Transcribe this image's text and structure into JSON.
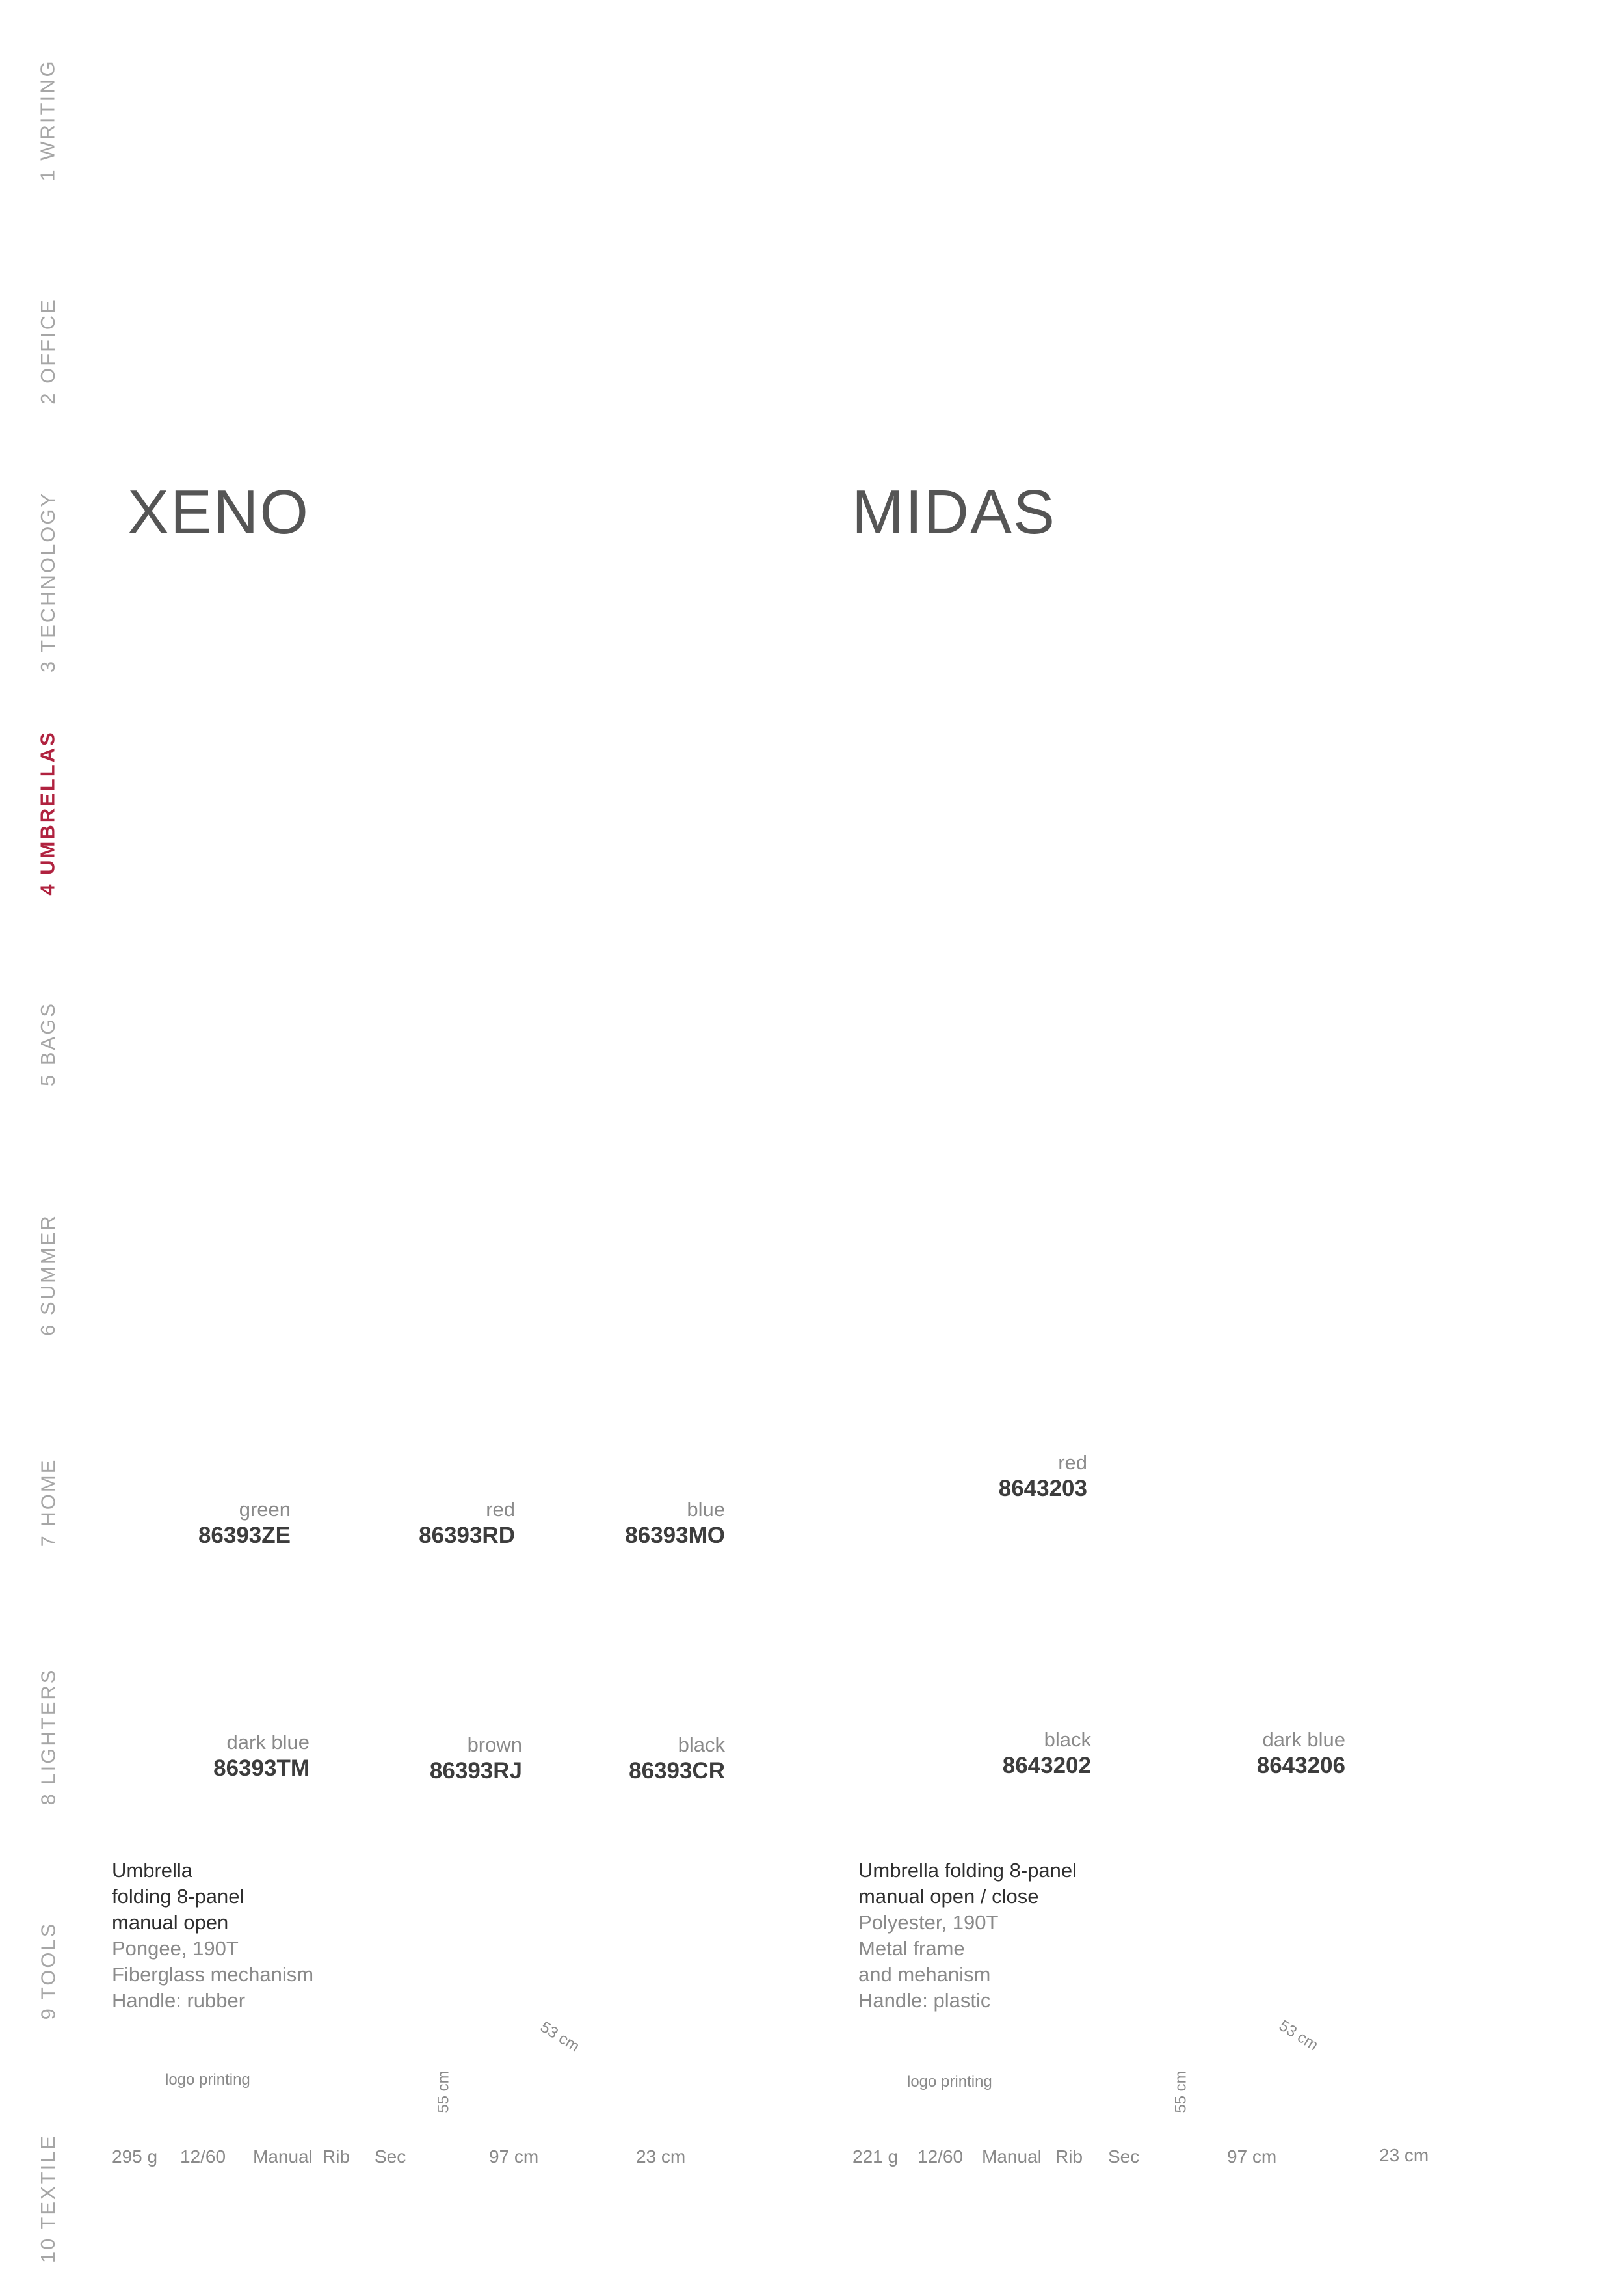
{
  "nav": {
    "tabs": [
      {
        "label": "1 WRITING"
      },
      {
        "label": "2 OFFICE"
      },
      {
        "label": "3 TECHNOLOGY"
      },
      {
        "label": "4 UMBRELLAS"
      },
      {
        "label": "5 BAGS"
      },
      {
        "label": "6 SUMMER"
      },
      {
        "label": "7 HOME"
      },
      {
        "label": "8 LIGHTERS"
      },
      {
        "label": "9 TOOLS"
      },
      {
        "label": "10 TEXTILE"
      }
    ],
    "active_index": 3,
    "active_color": "#b0223f"
  },
  "xeno": {
    "title": "XENO",
    "variants": [
      {
        "color": "green",
        "code": "86393ZE"
      },
      {
        "color": "red",
        "code": "86393RD"
      },
      {
        "color": "blue",
        "code": "86393MO"
      },
      {
        "color": "dark blue",
        "code": "86393TM"
      },
      {
        "color": "brown",
        "code": "86393RJ"
      },
      {
        "color": "black",
        "code": "86393CR"
      }
    ],
    "description": {
      "line1": "Umbrella",
      "line2": "folding 8-panel",
      "line3": "manual open",
      "line4": "Pongee, 190T",
      "line5": "Fiberglass mechanism",
      "line6": "Handle: rubber"
    },
    "logo_label": "logo printing",
    "height_label": "55 cm",
    "diameter_label": "53 cm",
    "specs": {
      "weight": "295 g",
      "pack": "12/60",
      "opening": "Manual",
      "rib": "Rib",
      "sec": "Sec",
      "span": "97 cm",
      "folded": "23 cm"
    }
  },
  "midas": {
    "title": "MIDAS",
    "variants": [
      {
        "color": "red",
        "code": "8643203"
      },
      {
        "color": "black",
        "code": "8643202"
      },
      {
        "color": "dark blue",
        "code": "8643206"
      }
    ],
    "description": {
      "line1": "Umbrella folding 8-panel",
      "line2": "manual open / close",
      "line3": "Polyester, 190T",
      "line4": "Metal frame",
      "line5": "and mehanism",
      "line6": "Handle: plastic"
    },
    "logo_label": "logo printing",
    "height_label": "55 cm",
    "diameter_label": "53 cm",
    "specs": {
      "weight": "221 g",
      "pack": "12/60",
      "opening": "Manual",
      "rib": "Rib",
      "sec": "Sec",
      "span": "97 cm",
      "folded": "23 cm"
    }
  }
}
